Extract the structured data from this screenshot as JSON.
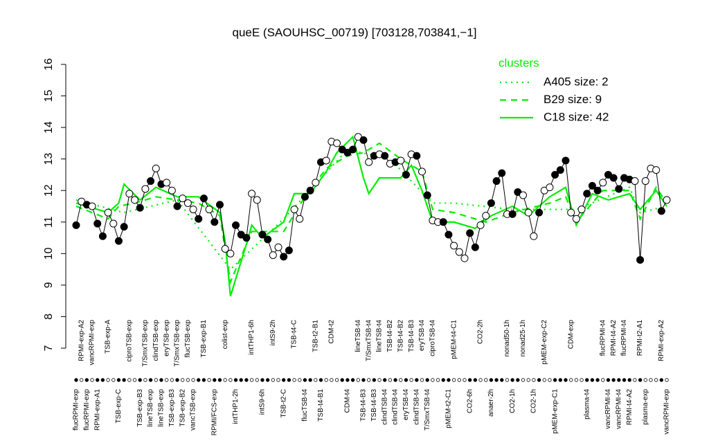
{
  "chart_data": {
    "type": "line",
    "title": "queE (SAOUHSC_00719) [703128,703841,−1]",
    "ylim": [
      7,
      16
    ],
    "yticks": [
      7,
      8,
      9,
      10,
      11,
      12,
      13,
      14,
      15,
      16
    ],
    "legend_title": "clusters",
    "legend_position": "top-right",
    "categories": [
      "flucRPMI-exp",
      "RPMI-exp-A2",
      "flucRPMI-exp",
      "vancRPMI-exp",
      "RPMI-exp-A1",
      null,
      "TSB-exp-A",
      null,
      "TSB-exp-C",
      null,
      "ciproTSB-exp",
      null,
      "TSB-exp-B3",
      "T/SmxTSB-exp",
      "lineTSB-exp",
      "clindTSB-exp",
      "lineTSB-exp",
      "eryTSB-exp",
      "TSB-exp-B3",
      "T/SmxTSB-exp",
      "TSB-exp-B2",
      "flucTSB-exp",
      "vancTSB-exp",
      null,
      "TSB-exp-B1",
      null,
      "RPMI/FCS-exp",
      null,
      "colist-exp",
      null,
      "intTHP1-2h",
      null,
      null,
      "intTHP1-6h",
      null,
      "intS9-6h",
      null,
      "intS9-2h",
      null,
      "TSB-t2-C",
      null,
      "TSB-t4-C",
      null,
      "flucTSB-t4",
      null,
      "TSB-t2-B1",
      "TSB-t4-B1",
      null,
      "CDM-t2",
      null,
      null,
      "CDM-t4",
      null,
      "lineTSB-t4",
      "TSB-t4-B3",
      "T/SmxTSB-t4",
      "TSB-t4-B3",
      "lineTSB-t4",
      "clindTSB-t4",
      "TSB-t4-B2",
      "clindTSB-t4",
      "TSB-t4-B2",
      "eryTSB-t4",
      "TSB-t4-B3",
      "clindTSB-t4",
      "eryTSB-t4",
      "T/SmxTSB-t4",
      "ciproTSB-t4",
      null,
      null,
      "pMEM-t2-C1",
      "pMEM-t4-C1",
      null,
      null,
      "CO2-6h",
      null,
      "CO2-2h",
      null,
      "anaer-2h",
      null,
      null,
      "nonad50-1h",
      "CO2-1h",
      null,
      "nonad25-1h",
      null,
      "CO2-1h",
      null,
      "pMEM-exp-C2",
      null,
      "pMEM-exp-C1",
      null,
      null,
      "CDM-exp",
      null,
      null,
      "plasma-t4",
      null,
      null,
      "flucRPMI-t4",
      "vancRPMI-t4",
      "RPMI-t4-A2",
      "vancRPMI-t4",
      "flucRPMI-t4",
      "RPMI-t4-A2",
      null,
      "RPMI-t2-A1",
      "plasma-exp",
      null,
      null,
      "RPMI-exp-A2",
      "vancRPMI-exp"
    ],
    "values": [
      10.9,
      11.65,
      11.55,
      11.5,
      10.95,
      10.55,
      11.3,
      10.95,
      10.4,
      10.85,
      11.9,
      11.7,
      11.45,
      12.05,
      12.3,
      12.7,
      12.2,
      12.25,
      12.0,
      11.5,
      11.75,
      11.6,
      11.4,
      11.1,
      11.75,
      11.4,
      11.0,
      11.55,
      10.15,
      10.0,
      10.9,
      10.6,
      10.5,
      11.9,
      11.7,
      10.6,
      10.45,
      9.95,
      10.2,
      9.9,
      10.1,
      11.4,
      11.1,
      11.8,
      12.0,
      12.25,
      12.9,
      12.95,
      13.55,
      13.5,
      13.3,
      13.2,
      13.3,
      13.7,
      13.6,
      12.9,
      13.1,
      13.15,
      13.1,
      12.85,
      12.9,
      12.95,
      12.5,
      13.15,
      13.1,
      12.6,
      11.85,
      11.05,
      11.0,
      11.0,
      10.6,
      10.25,
      10.05,
      9.85,
      10.65,
      10.2,
      10.9,
      11.2,
      11.6,
      12.3,
      12.55,
      11.25,
      11.25,
      11.95,
      11.85,
      11.3,
      10.55,
      11.3,
      12.0,
      12.1,
      12.5,
      12.65,
      12.95,
      11.3,
      11.1,
      11.4,
      11.9,
      12.15,
      12.0,
      12.25,
      12.5,
      12.4,
      12.05,
      12.4,
      12.35,
      12.3,
      9.8,
      12.3,
      12.7,
      12.65,
      11.35,
      11.7
    ],
    "filled": [
      true,
      false,
      true,
      false,
      true,
      true,
      false,
      false,
      true,
      true,
      false,
      false,
      true,
      false,
      true,
      false,
      true,
      false,
      false,
      true,
      false,
      false,
      false,
      true,
      true,
      false,
      true,
      true,
      false,
      false,
      true,
      true,
      true,
      false,
      false,
      true,
      true,
      false,
      false,
      true,
      true,
      false,
      false,
      true,
      true,
      false,
      true,
      false,
      false,
      false,
      true,
      true,
      true,
      false,
      true,
      false,
      true,
      false,
      true,
      false,
      true,
      false,
      true,
      false,
      true,
      false,
      true,
      false,
      false,
      true,
      true,
      false,
      false,
      false,
      true,
      true,
      false,
      false,
      true,
      true,
      true,
      false,
      true,
      true,
      false,
      false,
      false,
      true,
      false,
      false,
      true,
      true,
      true,
      false,
      false,
      false,
      true,
      true,
      true,
      false,
      true,
      true,
      true,
      true,
      true,
      false,
      true,
      false,
      false,
      false,
      true,
      false
    ],
    "point_color": "#000000",
    "series": [
      {
        "name": "A405 size: 2",
        "color": "#00ee00",
        "dash": "dotted",
        "x": [
          1,
          10,
          20,
          30,
          40,
          52,
          60,
          68,
          72,
          83,
          95,
          105,
          107,
          112
        ],
        "values": [
          11.7,
          11.3,
          11.7,
          9.5,
          11.1,
          13.3,
          13.0,
          11.6,
          11.6,
          11.4,
          11.4,
          12.1,
          11.3,
          11.5
        ]
      },
      {
        "name": "B29 size: 9",
        "color": "#00ee00",
        "dash": "dashed",
        "x": [
          1,
          7,
          9,
          12,
          16,
          24,
          28,
          30,
          34,
          40,
          44,
          48,
          52,
          55,
          58,
          62,
          66,
          68,
          72,
          78,
          83,
          90,
          93,
          95,
          100,
          105,
          107,
          110,
          112
        ],
        "values": [
          11.5,
          11.1,
          11.5,
          11.6,
          11.8,
          11.6,
          11.2,
          9.1,
          10.7,
          10.7,
          11.8,
          12.7,
          13.1,
          13.2,
          13.5,
          13.0,
          12.6,
          11.4,
          11.3,
          11.0,
          11.3,
          11.6,
          11.8,
          11.0,
          12.0,
          12.0,
          11.1,
          12.1,
          11.6
        ]
      },
      {
        "name": "C18 size: 42",
        "color": "#00ee00",
        "dash": "solid",
        "x": [
          1,
          7,
          9,
          10,
          13,
          16,
          20,
          24,
          28,
          29,
          30,
          33,
          34,
          36,
          40,
          42,
          45,
          48,
          50,
          53,
          55,
          56,
          58,
          62,
          64,
          66,
          68,
          72,
          76,
          79,
          83,
          86,
          90,
          93,
          95,
          98,
          101,
          105,
          107,
          110,
          112
        ],
        "values": [
          11.6,
          11.3,
          11.6,
          12.2,
          11.7,
          12.1,
          11.8,
          11.8,
          11.3,
          10.4,
          8.65,
          10.3,
          10.9,
          10.5,
          11.0,
          11.9,
          11.9,
          12.6,
          13.2,
          13.7,
          12.4,
          11.9,
          12.4,
          12.4,
          12.8,
          12.0,
          11.0,
          11.0,
          10.8,
          11.2,
          11.5,
          11.2,
          11.8,
          12.1,
          10.9,
          11.9,
          11.7,
          11.9,
          11.4,
          12.0,
          11.5
        ]
      }
    ]
  }
}
